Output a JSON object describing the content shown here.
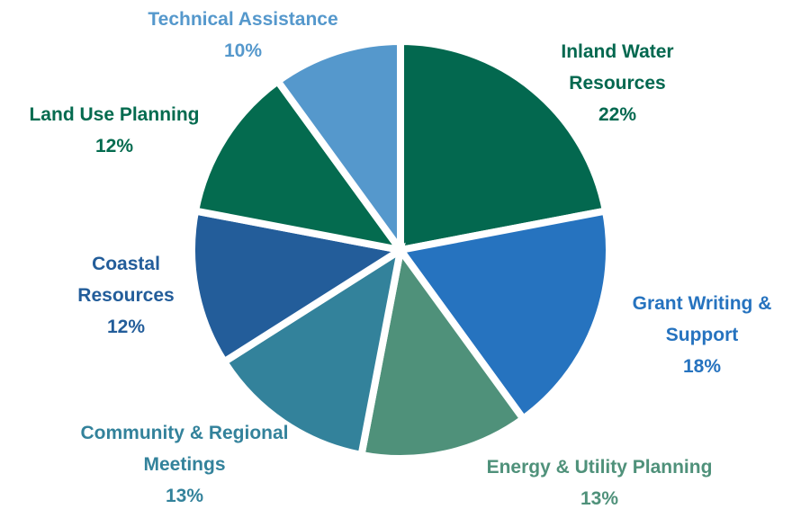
{
  "chart_data": {
    "type": "pie",
    "categories": [
      "Inland Water Resources",
      "Grant Writing & Support",
      "Energy & Utility Planning",
      "Community & Regional Meetings",
      "Coastal Resources",
      "Land Use Planning",
      "Technical Assistance"
    ],
    "values": [
      22,
      18,
      13,
      13,
      12,
      12,
      10
    ],
    "value_labels": [
      "22%",
      "18%",
      "13%",
      "13%",
      "12%",
      "12%",
      "10%"
    ],
    "colors": [
      "#03684f",
      "#2673bf",
      "#4f917a",
      "#33829b",
      "#235d9a",
      "#046b4f",
      "#5598cc"
    ]
  }
}
